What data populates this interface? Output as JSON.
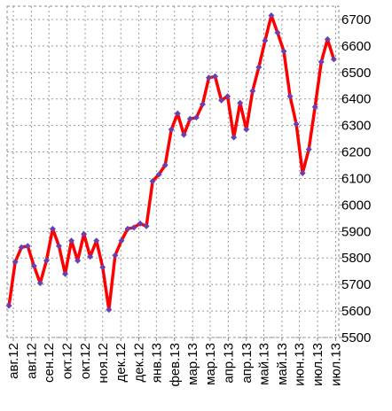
{
  "chart_data": {
    "type": "line",
    "x": [
      0,
      1,
      2,
      3,
      4,
      5,
      6,
      7,
      8,
      9,
      10,
      11,
      12,
      13,
      14,
      15,
      16,
      17,
      18,
      19,
      20,
      21,
      22,
      23,
      24,
      25,
      26,
      27,
      28,
      29,
      30,
      31,
      32,
      33,
      34,
      35,
      36,
      37,
      38,
      39,
      40,
      41,
      42,
      43,
      44,
      45,
      46,
      47,
      48,
      49,
      50,
      51,
      52
    ],
    "series": [
      {
        "name": null,
        "color": "#ff0000",
        "marker_color": "#6a3fb0",
        "values": [
          5620,
          5785,
          5840,
          5845,
          5770,
          5705,
          5790,
          5910,
          5845,
          5740,
          5865,
          5790,
          5890,
          5805,
          5865,
          5765,
          5605,
          5810,
          5865,
          5910,
          5915,
          5930,
          5920,
          6090,
          6115,
          6150,
          6285,
          6345,
          6265,
          6325,
          6330,
          6380,
          6480,
          6485,
          6395,
          6410,
          6255,
          6385,
          6285,
          6430,
          6520,
          6620,
          6715,
          6650,
          6580,
          6410,
          6305,
          6120,
          6210,
          6370,
          6540,
          6625,
          6550
        ]
      }
    ],
    "xlim": [
      -0.3,
      52.8
    ],
    "xticks": [
      {
        "value": 0.7,
        "label": "авг.12"
      },
      {
        "value": 3.6,
        "label": "авг.12"
      },
      {
        "value": 6.4,
        "label": "сен.12"
      },
      {
        "value": 9.3,
        "label": "окт.12"
      },
      {
        "value": 12.2,
        "label": "окт.12"
      },
      {
        "value": 15.0,
        "label": "ноя.12"
      },
      {
        "value": 17.9,
        "label": "дек.12"
      },
      {
        "value": 20.8,
        "label": "дек.12"
      },
      {
        "value": 23.6,
        "label": "янв.13"
      },
      {
        "value": 26.5,
        "label": "фев.13"
      },
      {
        "value": 29.4,
        "label": "мар.13"
      },
      {
        "value": 32.2,
        "label": "мар.13"
      },
      {
        "value": 35.1,
        "label": "апр.13"
      },
      {
        "value": 38.0,
        "label": "апр.13"
      },
      {
        "value": 40.8,
        "label": "май.13"
      },
      {
        "value": 43.7,
        "label": "май.13"
      },
      {
        "value": 46.5,
        "label": "июн.13"
      },
      {
        "value": 49.4,
        "label": "июл.13"
      },
      {
        "value": 52.3,
        "label": "июл.13"
      }
    ],
    "ylim": [
      5500,
      6750
    ],
    "yticks": [
      5500,
      5600,
      5700,
      5800,
      5900,
      6000,
      6100,
      6200,
      6300,
      6400,
      6500,
      6600,
      6700
    ],
    "grid": true
  }
}
